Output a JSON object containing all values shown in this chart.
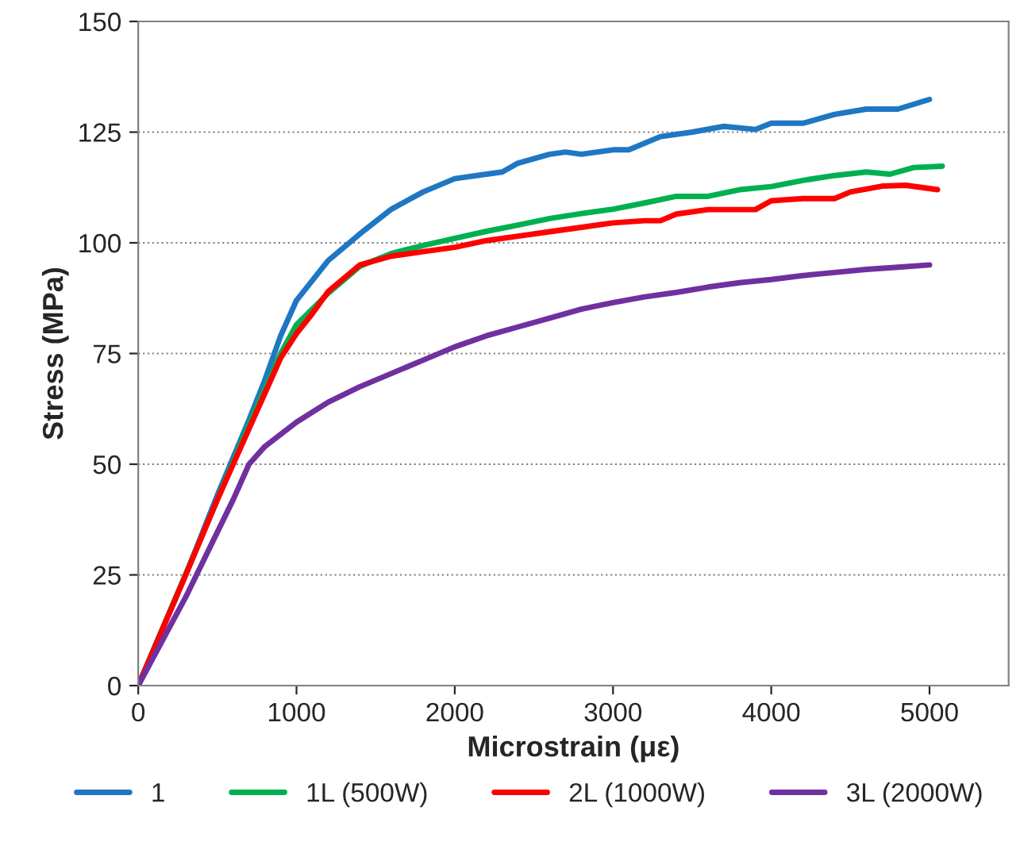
{
  "chart_data": {
    "type": "line",
    "xlabel": "Microstrain (με)",
    "ylabel": "Stress (MPa)",
    "xlim": [
      0,
      5500
    ],
    "ylim": [
      0,
      150
    ],
    "xticks": [
      0,
      1000,
      2000,
      3000,
      4000,
      5000
    ],
    "yticks": [
      0,
      25,
      50,
      75,
      100,
      125,
      150
    ],
    "grid": "y",
    "legend": "bottom",
    "marker": "none",
    "line_style": "solid",
    "series": [
      {
        "name": "1",
        "color": "#1f77c4",
        "x": [
          0,
          300,
          500,
          700,
          800,
          900,
          1000,
          1200,
          1400,
          1600,
          1800,
          2000,
          2200,
          2300,
          2400,
          2600,
          2700,
          2800,
          3000,
          3100,
          3300,
          3500,
          3700,
          3900,
          4000,
          4200,
          4400,
          4600,
          4800,
          5000
        ],
        "values": [
          0,
          25,
          43,
          60,
          69,
          79,
          87,
          96,
          102,
          107.6,
          111.5,
          114.5,
          115.5,
          116,
          118,
          120,
          120.5,
          120,
          121,
          121,
          124,
          125,
          126.3,
          125.6,
          127,
          127,
          129,
          130.2,
          130.2,
          132.4
        ]
      },
      {
        "name": "1L (500W)",
        "color": "#00b050",
        "x": [
          0,
          500,
          700,
          800,
          900,
          1000,
          1200,
          1400,
          1600,
          1800,
          2000,
          2200,
          2400,
          2600,
          2800,
          3000,
          3200,
          3400,
          3600,
          3800,
          4000,
          4200,
          4400,
          4600,
          4750,
          4900,
          5080
        ],
        "values": [
          0,
          42,
          59,
          67,
          75,
          81.5,
          88.6,
          94.7,
          97.6,
          99.4,
          101,
          102.6,
          104,
          105.5,
          106.6,
          107.6,
          109,
          110.5,
          110.5,
          112,
          112.7,
          114.1,
          115.2,
          116,
          115.5,
          117,
          117.3
        ]
      },
      {
        "name": "2L (1000W)",
        "color": "#ff0000",
        "x": [
          0,
          300,
          500,
          700,
          800,
          900,
          1000,
          1100,
          1200,
          1400,
          1600,
          1800,
          2000,
          2200,
          2400,
          2600,
          2800,
          3000,
          3200,
          3300,
          3400,
          3600,
          3800,
          3900,
          4000,
          4200,
          4400,
          4500,
          4700,
          4850,
          5050
        ],
        "values": [
          0,
          25,
          42,
          58,
          66,
          74,
          79.5,
          84,
          89,
          95,
          97,
          98,
          99,
          100.5,
          101.5,
          102.5,
          103.5,
          104.5,
          105,
          105,
          106.5,
          107.5,
          107.5,
          107.5,
          109.5,
          110,
          110,
          111.5,
          112.8,
          113,
          112
        ]
      },
      {
        "name": "3L (2000W)",
        "color": "#7030a0",
        "x": [
          0,
          300,
          600,
          700,
          800,
          1000,
          1200,
          1400,
          1600,
          1800,
          2000,
          2200,
          2400,
          2600,
          2800,
          3000,
          3200,
          3400,
          3600,
          3800,
          4000,
          4200,
          4400,
          4600,
          4800,
          5000
        ],
        "values": [
          0,
          20,
          42,
          50,
          54,
          59.5,
          64,
          67.5,
          70.5,
          73.5,
          76.5,
          79,
          81,
          83,
          85,
          86.5,
          87.8,
          88.8,
          90,
          91,
          91.7,
          92.6,
          93.3,
          94,
          94.5,
          95
        ]
      }
    ]
  }
}
